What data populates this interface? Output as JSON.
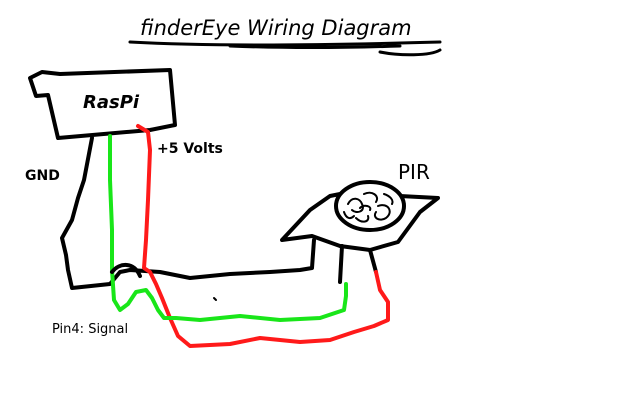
{
  "title": "finderEye Wiring Diagram",
  "labels": {
    "board": "RasPi",
    "power": "+5 Volts",
    "ground": "GND",
    "sensor": "PIR",
    "signal": "Pin4: Signal"
  },
  "colors": {
    "outline": "#000000",
    "power_wire": "#ff1a1a",
    "signal_wire": "#19e619",
    "background": "#ffffff"
  }
}
